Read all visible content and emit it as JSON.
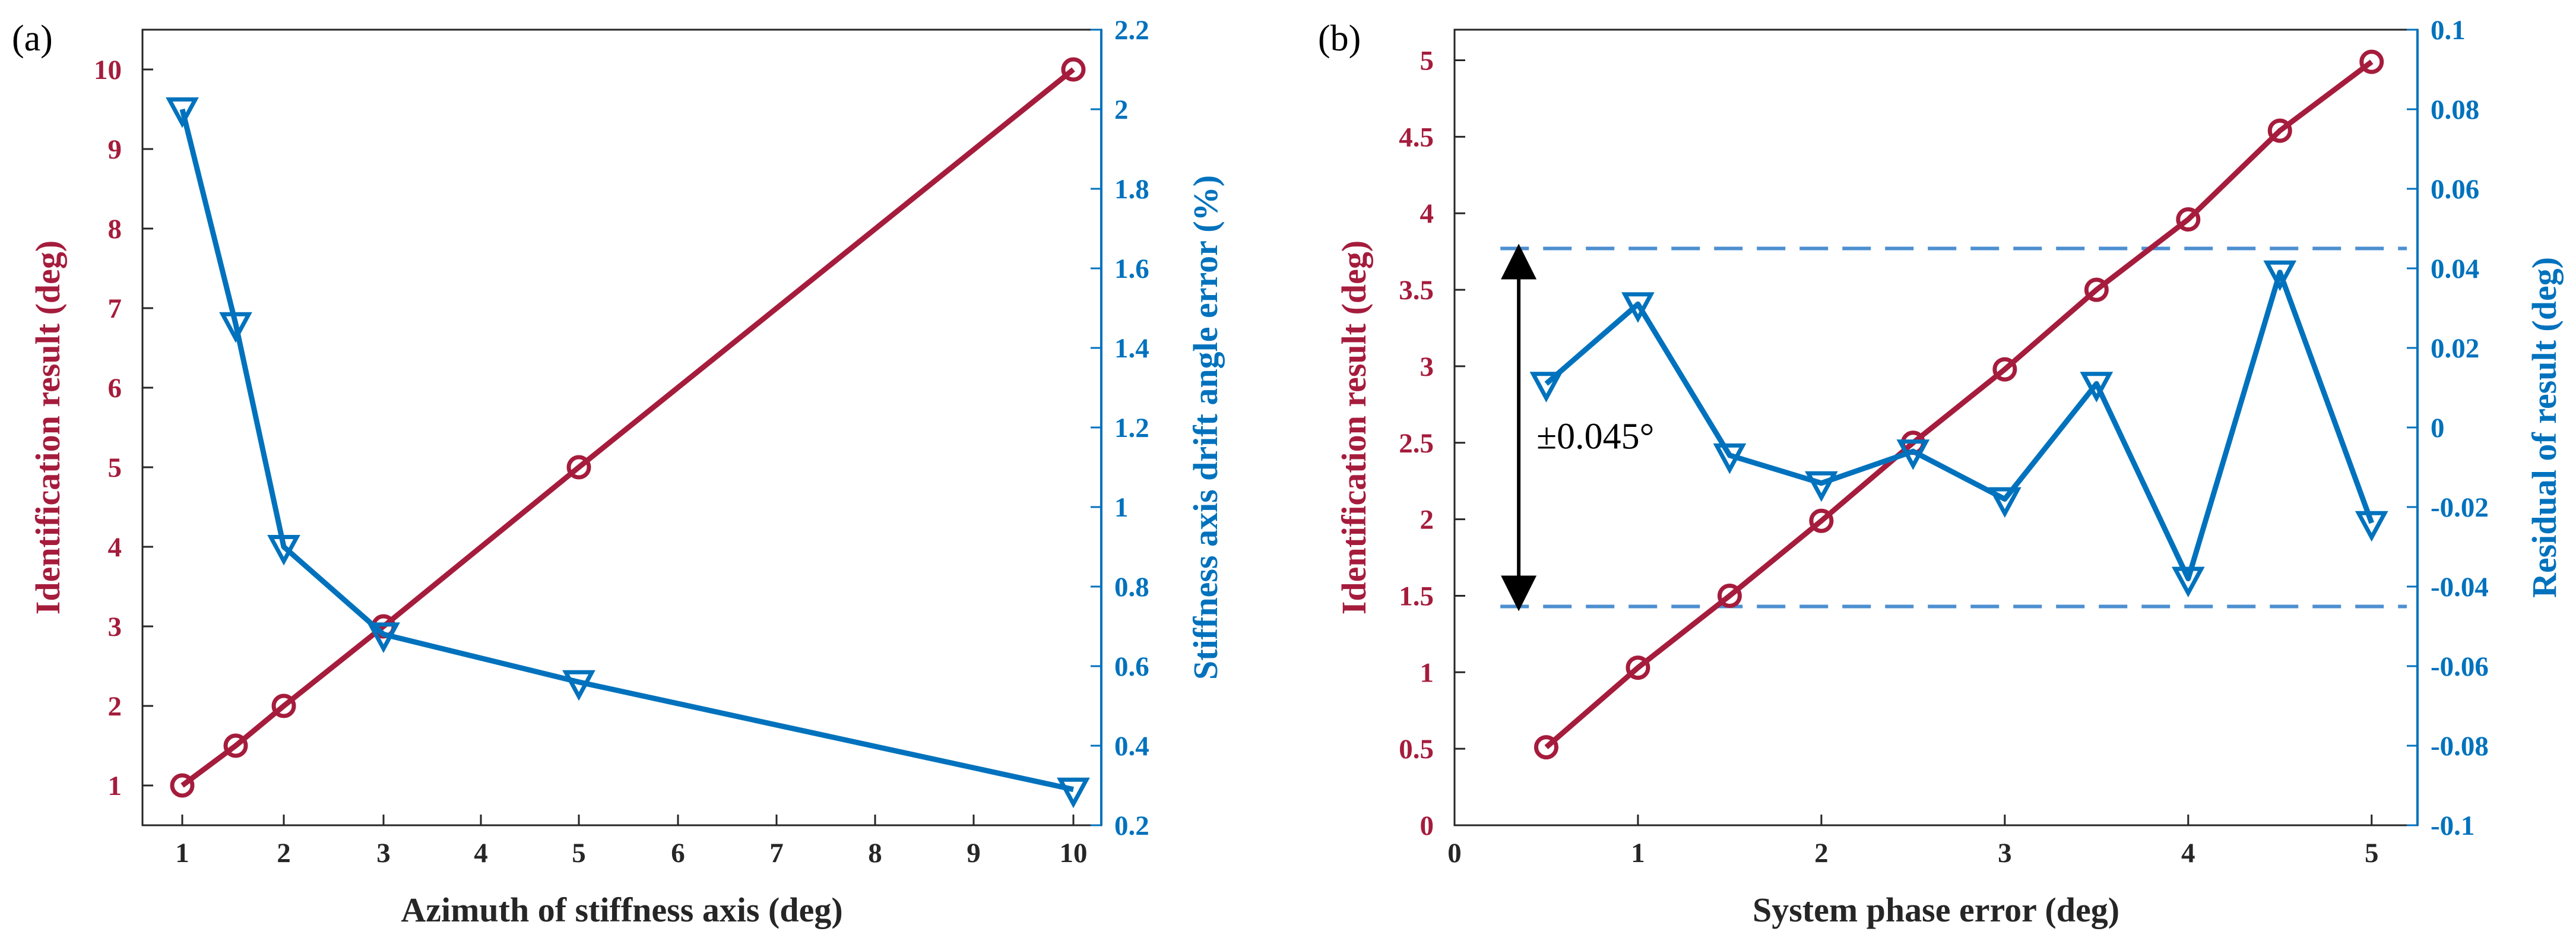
{
  "colors": {
    "red": "#a51c3c",
    "blue": "#0072bd",
    "dashed": "#4d8fd1",
    "axis": "#262626"
  },
  "chart_data": [
    {
      "panel_label": "(a)",
      "type": "line",
      "xlabel": "Azimuth of stiffness axis (deg)",
      "ylabel_left": "Identification result (deg)",
      "ylabel_right": "Stiffness axis drift angle error (%)",
      "x_categories": [
        "1",
        "1.5",
        "2",
        "3",
        "4",
        "5",
        "6",
        "7",
        "8",
        "9",
        "10"
      ],
      "x_tick_labels": [
        "1",
        "2",
        "3",
        "4",
        "5",
        "6",
        "7",
        "8",
        "9",
        "10"
      ],
      "ylim_left": [
        0.5,
        10.5
      ],
      "yticks_left": [
        1,
        2,
        3,
        4,
        5,
        6,
        7,
        8,
        9,
        10
      ],
      "ylim_right": [
        0.2,
        2.2
      ],
      "yticks_right": [
        0.2,
        0.4,
        0.6,
        0.8,
        1,
        1.2,
        1.4,
        1.6,
        1.8,
        2,
        2.2
      ],
      "series": [
        {
          "name": "Identification result",
          "axis": "left",
          "marker": "circle",
          "x": [
            "1",
            "1.5",
            "2",
            "3",
            "5",
            "10"
          ],
          "values": [
            1.0,
            1.5,
            2.0,
            3.0,
            5.0,
            10.0
          ]
        },
        {
          "name": "Stiffness axis drift angle error",
          "axis": "right",
          "marker": "triangle-down",
          "x": [
            "1",
            "1.5",
            "2",
            "3",
            "5",
            "10"
          ],
          "values": [
            2.0,
            1.46,
            0.9,
            0.68,
            0.56,
            0.29
          ]
        }
      ]
    },
    {
      "panel_label": "(b)",
      "type": "line",
      "xlabel": "System phase error (deg)",
      "ylabel_left": "Identification result (deg)",
      "ylabel_right": "Residual of result (deg)",
      "xlim": [
        0,
        5.25
      ],
      "xticks": [
        0,
        1,
        2,
        3,
        4,
        5
      ],
      "ylim_left": [
        0,
        5.2
      ],
      "yticks_left": [
        0,
        0.5,
        1,
        1.5,
        2,
        2.5,
        3,
        3.5,
        4,
        4.5,
        5
      ],
      "ylim_right": [
        -0.1,
        0.1
      ],
      "yticks_right": [
        -0.1,
        -0.08,
        -0.06,
        -0.04,
        -0.02,
        0,
        0.02,
        0.04,
        0.06,
        0.08,
        0.1
      ],
      "series": [
        {
          "name": "Identification result",
          "axis": "left",
          "marker": "circle",
          "x": [
            0.5,
            1,
            1.5,
            2,
            2.5,
            3,
            3.5,
            4,
            4.5,
            5
          ],
          "values": [
            0.51,
            1.03,
            1.5,
            1.99,
            2.5,
            2.98,
            3.5,
            3.96,
            4.54,
            4.99
          ]
        },
        {
          "name": "Residual of result",
          "axis": "right",
          "marker": "triangle-down",
          "x": [
            0.5,
            1,
            1.5,
            2,
            2.5,
            3,
            3.5,
            4,
            4.5,
            5
          ],
          "values": [
            0.011,
            0.031,
            -0.007,
            -0.014,
            -0.006,
            -0.018,
            0.011,
            -0.038,
            0.039,
            -0.024
          ]
        }
      ],
      "reference_lines": [
        0.045,
        -0.045
      ],
      "annotation": "±0.045°"
    }
  ]
}
